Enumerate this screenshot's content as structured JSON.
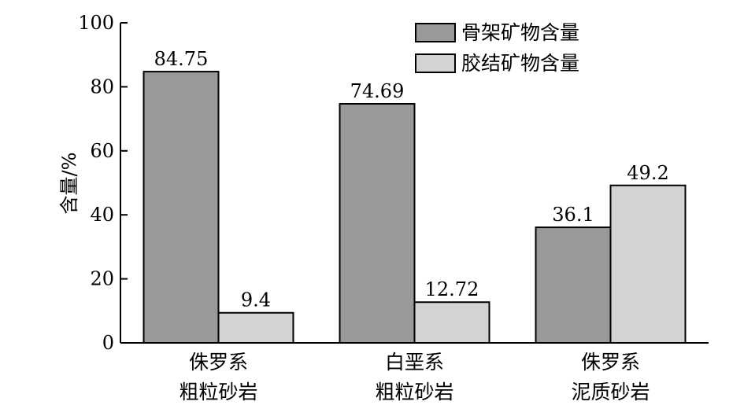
{
  "chart_data": {
    "type": "bar",
    "categories": [
      [
        "侏罗系",
        "粗粒砂岩"
      ],
      [
        "白垩系",
        "粗粒砂岩"
      ],
      [
        "侏罗系",
        "泥质砂岩"
      ]
    ],
    "series": [
      {
        "name": "骨架矿物含量",
        "values": [
          84.75,
          74.69,
          36.1
        ],
        "labels": [
          "84.75",
          "74.69",
          "36.1"
        ],
        "color": "#999999"
      },
      {
        "name": "胶结矿物含量",
        "values": [
          9.4,
          12.72,
          49.2
        ],
        "labels": [
          "9.4",
          "12.72",
          "49.2"
        ],
        "color": "#d3d3d3"
      }
    ],
    "ylabel": "含量/%",
    "ylim": [
      0,
      100
    ],
    "yticks": [
      0,
      20,
      40,
      60,
      80,
      100
    ],
    "legend_position": "top-right",
    "grid": false
  }
}
